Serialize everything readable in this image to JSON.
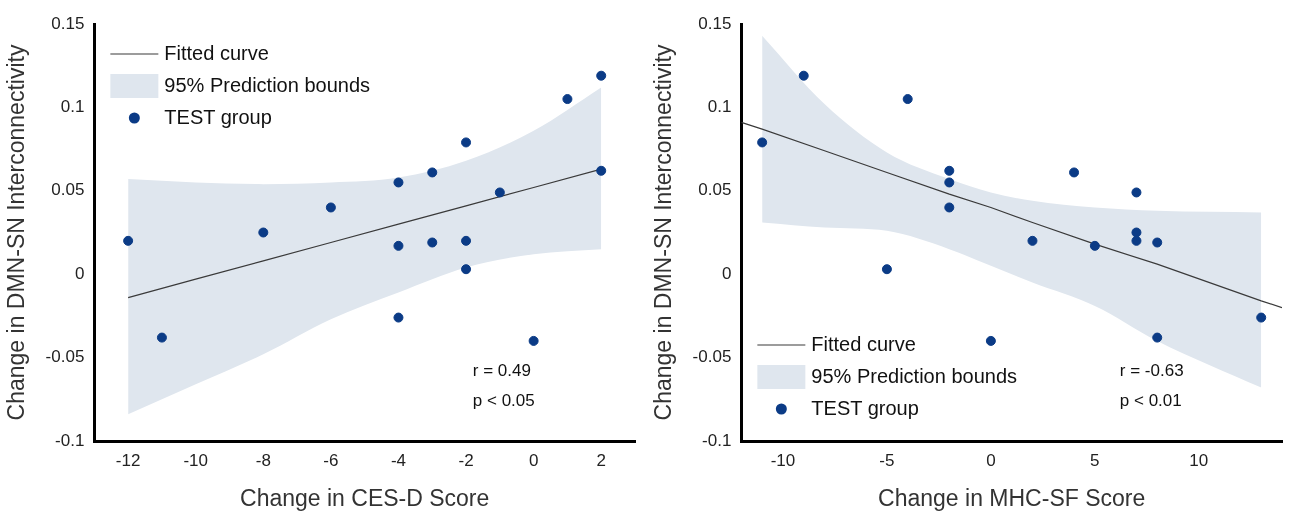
{
  "chart_data": [
    {
      "type": "scatter",
      "xlabel": "Change in CES-D Score",
      "ylabel": "Change in DMN-SN Interconnectivity",
      "xlim": [
        -13,
        3
      ],
      "xticks": [
        -12,
        -10,
        -8,
        -6,
        -4,
        -2,
        0,
        2
      ],
      "ylim": [
        -0.1,
        0.15
      ],
      "yticks": [
        -0.1,
        -0.05,
        0,
        0.05,
        0.1,
        0.15
      ],
      "legend": "top left",
      "annotations": [
        "r = 0.49",
        "p < 0.05"
      ],
      "series": [
        {
          "name": "Fitted curve",
          "type": "line",
          "color": "#3a3a3a",
          "x": [
            -12,
            -10,
            -8,
            -6,
            -4,
            -2,
            0,
            2
          ],
          "values": [
            -0.014,
            -0.003,
            0.008,
            0.019,
            0.03,
            0.041,
            0.052,
            0.063
          ],
          "lower": [
            -0.084,
            -0.066,
            -0.048,
            -0.027,
            -0.011,
            0.004,
            0.012,
            0.015
          ],
          "upper": [
            0.057,
            0.055,
            0.054,
            0.055,
            0.058,
            0.068,
            0.086,
            0.112
          ]
        },
        {
          "name": "95% Prediction bounds",
          "type": "area",
          "color": "#dfe6ee"
        },
        {
          "name": "TEST group",
          "type": "scatter",
          "marker": "circle",
          "color": "#0b3b86",
          "x": [
            -12,
            -11,
            -8,
            -6,
            -4,
            -4,
            -4,
            -3,
            -3,
            -2,
            -2,
            -2,
            -1,
            0,
            1,
            2,
            2
          ],
          "values": [
            0.02,
            -0.038,
            0.025,
            0.04,
            0.055,
            0.017,
            -0.026,
            0.061,
            0.019,
            0.079,
            0.02,
            0.003,
            0.049,
            -0.04,
            0.105,
            0.119,
            0.062
          ]
        }
      ]
    },
    {
      "type": "scatter",
      "xlabel": "Change in MHC-SF Score",
      "ylabel": "Change in DMN-SN Interconnectivity",
      "xlim": [
        -12,
        14
      ],
      "xticks": [
        -10,
        -5,
        0,
        5,
        10
      ],
      "ylim": [
        -0.1,
        0.15
      ],
      "yticks": [
        -0.1,
        -0.05,
        0,
        0.05,
        0.1,
        0.15
      ],
      "legend": "bottom left",
      "annotations": [
        "r = -0.63",
        "p < 0.01"
      ],
      "series": [
        {
          "name": "Fitted curve",
          "type": "line",
          "color": "#3a3a3a",
          "x": [
            -12,
            -11,
            -8,
            -5,
            -2,
            0,
            2,
            5,
            8,
            13,
            14
          ],
          "values": [
            0.091,
            0.087,
            0.074,
            0.061,
            0.048,
            0.04,
            0.031,
            0.018,
            0.006,
            -0.016,
            -0.02
          ],
          "lower": [
            null,
            0.031,
            0.028,
            0.026,
            0.015,
            0.005,
            -0.005,
            -0.019,
            -0.04,
            -0.068,
            null
          ],
          "upper": [
            null,
            0.143,
            0.102,
            0.073,
            0.057,
            0.049,
            0.044,
            0.04,
            0.038,
            0.037,
            null
          ]
        },
        {
          "name": "95% Prediction bounds",
          "type": "area",
          "color": "#dfe6ee"
        },
        {
          "name": "TEST group",
          "type": "scatter",
          "marker": "circle",
          "color": "#0b3b86",
          "x": [
            -11,
            -9,
            -5,
            -4,
            -2,
            -2,
            -2,
            0,
            2,
            4,
            5,
            7,
            7,
            7,
            8,
            8,
            13
          ],
          "values": [
            0.079,
            0.119,
            0.003,
            0.105,
            0.062,
            0.055,
            0.04,
            -0.04,
            0.02,
            0.061,
            0.017,
            0.049,
            0.025,
            0.02,
            0.019,
            -0.038,
            -0.026
          ]
        }
      ]
    }
  ]
}
